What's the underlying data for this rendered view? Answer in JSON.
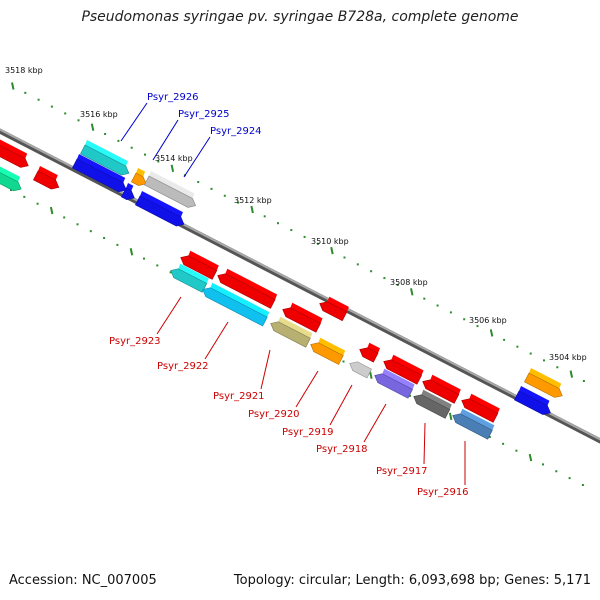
{
  "title": "Pseudomonas syringae pv. syringae B728a, complete genome",
  "footer": {
    "accession": "Accession: NC_007005",
    "summary": "Topology: circular; Length: 6,093,698 bp; Genes: 5,171"
  },
  "colors": {
    "backbone": "#7a7a7a",
    "tick": "#2e8b2e",
    "upper_label": "#0000cc",
    "lower_label": "#cc0000"
  },
  "scale_labels": [
    "3518 kbp",
    "3516 kbp",
    "3514 kbp",
    "3512 kbp",
    "3510 kbp",
    "3508 kbp",
    "3506 kbp",
    "3504 kbp"
  ],
  "upper_gene_labels": [
    "Psyr_2926",
    "Psyr_2925",
    "Psyr_2924"
  ],
  "lower_gene_labels": [
    "Psyr_2923",
    "Psyr_2922",
    "Psyr_2921",
    "Psyr_2920",
    "Psyr_2919",
    "Psyr_2918",
    "Psyr_2917",
    "Psyr_2916"
  ],
  "features": [
    {
      "color": "#ee0000",
      "strand": "forward"
    },
    {
      "color": "#10d890",
      "strand": "forward"
    },
    {
      "color": "#ee0000",
      "strand": "forward"
    },
    {
      "color": "#20c8c8",
      "strand": "forward"
    },
    {
      "color": "#1010e8",
      "strand": "forward"
    },
    {
      "color": "#ff9900",
      "strand": "forward"
    },
    {
      "color": "#1010e8",
      "strand": "forward"
    },
    {
      "color": "#bbbbbb",
      "strand": "forward"
    },
    {
      "color": "#1010e8",
      "strand": "forward"
    },
    {
      "color": "#ee0000",
      "strand": "reverse"
    },
    {
      "color": "#ee0000",
      "strand": "reverse"
    },
    {
      "color": "#20c8c8",
      "strand": "reverse"
    },
    {
      "color": "#10c0ee",
      "strand": "reverse"
    },
    {
      "color": "#ee0000",
      "strand": "reverse"
    },
    {
      "color": "#ee0000",
      "strand": "reverse"
    },
    {
      "color": "#b8b070",
      "strand": "reverse"
    },
    {
      "color": "#ff9900",
      "strand": "reverse"
    },
    {
      "color": "#ee0000",
      "strand": "reverse"
    },
    {
      "color": "#cccccc",
      "strand": "reverse"
    },
    {
      "color": "#ee0000",
      "strand": "reverse"
    },
    {
      "color": "#7766dd",
      "strand": "reverse"
    },
    {
      "color": "#ee0000",
      "strand": "reverse"
    },
    {
      "color": "#666666",
      "strand": "reverse"
    },
    {
      "color": "#ee0000",
      "strand": "reverse"
    },
    {
      "color": "#4a7fb5",
      "strand": "reverse"
    },
    {
      "color": "#ff9900",
      "strand": "forward"
    },
    {
      "color": "#1010e8",
      "strand": "forward"
    }
  ]
}
